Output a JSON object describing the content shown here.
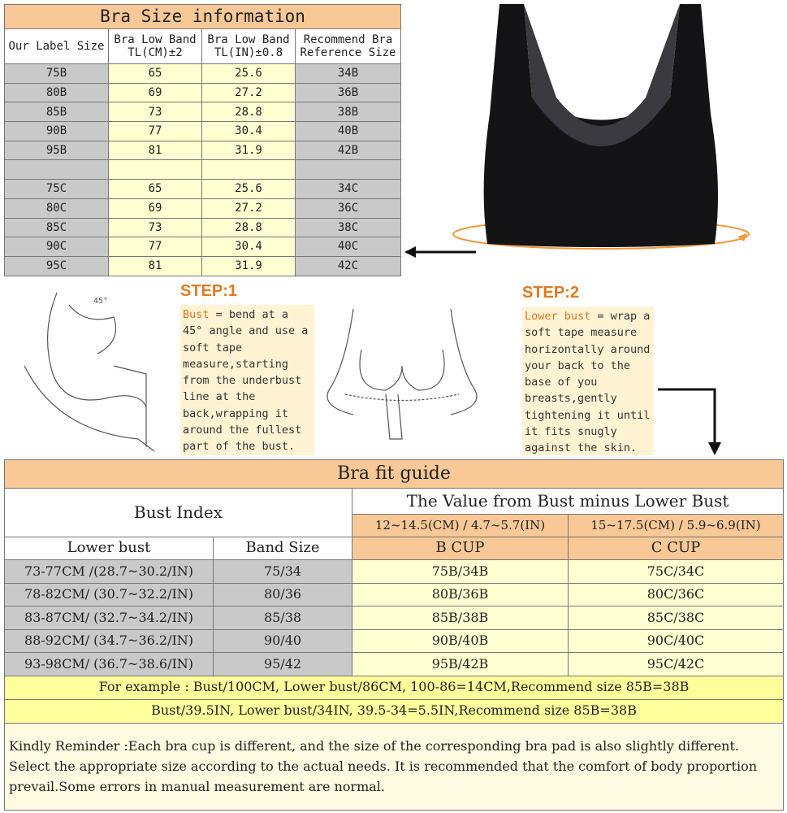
{
  "size_table": {
    "title": "Bra Size information",
    "headers": [
      "Our Label Size",
      "Bra Low Band TL(CM)±2",
      "Bra Low Band TL(IN)±0.8",
      "Recommend Bra Reference Size"
    ],
    "rows": [
      [
        "75B",
        "65",
        "25.6",
        "34B"
      ],
      [
        "80B",
        "69",
        "27.2",
        "36B"
      ],
      [
        "85B",
        "73",
        "28.8",
        "38B"
      ],
      [
        "90B",
        "77",
        "30.4",
        "40B"
      ],
      [
        "95B",
        "81",
        "31.9",
        "42B"
      ],
      [
        "",
        "",
        "",
        ""
      ],
      [
        "75C",
        "65",
        "25.6",
        "34C"
      ],
      [
        "80C",
        "69",
        "27.2",
        "36C"
      ],
      [
        "85C",
        "73",
        "28.8",
        "38C"
      ],
      [
        "90C",
        "77",
        "30.4",
        "40C"
      ],
      [
        "95C",
        "81",
        "31.9",
        "42C"
      ]
    ]
  },
  "angle_label": "45°",
  "step1": {
    "label": "STEP:1",
    "term": "Bust",
    "text": " = bend at a 45° angle and use a soft tape measure,starting from the underbust line at the back,wrapping it around the fullest part of the bust."
  },
  "step2": {
    "label": "STEP:2",
    "term": "Lower bust",
    "text": " = wrap a soft tape measure horizontally around your back to the base of you breasts,gently tightening it until it fits snugly against the skin."
  },
  "fit_guide": {
    "title": "Bra fit guide",
    "bust_index": "Bust Index",
    "value_header": "The Value from Bust minus Lower Bust",
    "ranges": [
      "12~14.5(CM) / 4.7~5.7(IN)",
      "15~17.5(CM) / 5.9~6.9(IN)"
    ],
    "col_headers": [
      "Lower bust",
      "Band Size",
      "B CUP",
      "C CUP"
    ],
    "rows": [
      [
        "73-77CM /(28.7~30.2/IN)",
        "75/34",
        "75B/34B",
        "75C/34C"
      ],
      [
        "78-82CM/ (30.7~32.2/IN)",
        "80/36",
        "80B/36B",
        "80C/36C"
      ],
      [
        "83-87CM/ (32.7~34.2/IN)",
        "85/38",
        "85B/38B",
        "85C/38C"
      ],
      [
        "88-92CM/ (34.7~36.2/IN)",
        "90/40",
        "90B/40B",
        "90C/40C"
      ],
      [
        "93-98CM/ (36.7~38.6/IN)",
        "95/42",
        "95B/42B",
        "95C/42C"
      ]
    ],
    "example1": "For example : Bust/100CM,  Lower bust/86CM, 100-86=14CM,Recommend size 85B=38B",
    "example2": "Bust/39.5IN,  Lower bust/34IN, 39.5-34=5.5IN,Recommend size 85B=38B",
    "reminder": "Kindly Reminder :Each bra cup is different, and the size of the corresponding bra pad is also slightly different. Select the appropriate size according to the actual needs. It is recommended that the comfort of body proportion prevail.Some errors in manual measurement are normal."
  },
  "colors": {
    "header": "#f8c896",
    "gray": "#c9c9c9",
    "yellow": "#ffffd2",
    "step": "#e07a1f"
  }
}
